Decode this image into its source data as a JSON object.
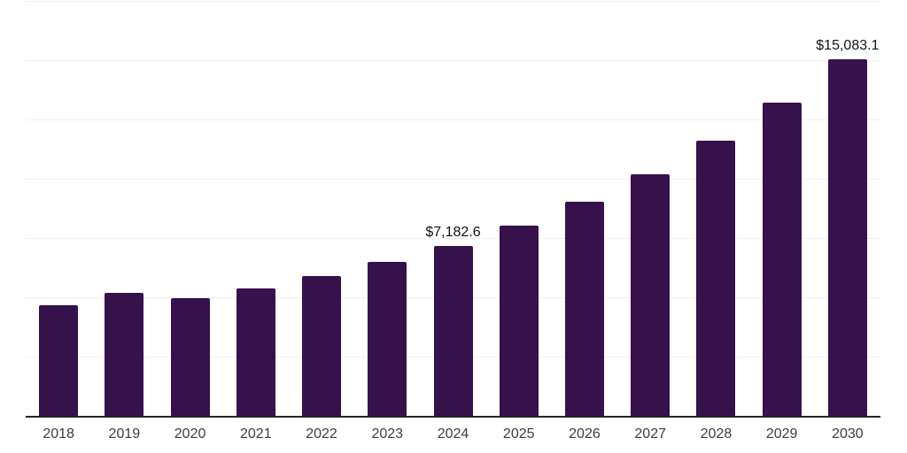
{
  "chart_data": {
    "type": "bar",
    "title": "",
    "xlabel": "",
    "ylabel": "",
    "categories": [
      "2018",
      "2019",
      "2020",
      "2021",
      "2022",
      "2023",
      "2024",
      "2025",
      "2026",
      "2027",
      "2028",
      "2029",
      "2030"
    ],
    "values": [
      4680,
      5230,
      4990,
      5410,
      5920,
      6520,
      7182.6,
      8040,
      9050,
      10210,
      11620,
      13230,
      15083.1
    ],
    "value_labels": {
      "2024": "$7,182.6",
      "2030": "$15,083.1"
    },
    "ylim": [
      0,
      17500
    ],
    "gridline_step": 2500,
    "grid": "horizontal-only",
    "y_tick_labels_visible": false,
    "legend": "none",
    "colors": {
      "bar": "#36114b",
      "background": "#ffffff",
      "gridline": "#f0f0f0",
      "axis_line": "#262626",
      "tick_label": "#3d3d3d",
      "value_label": "#121212"
    }
  }
}
